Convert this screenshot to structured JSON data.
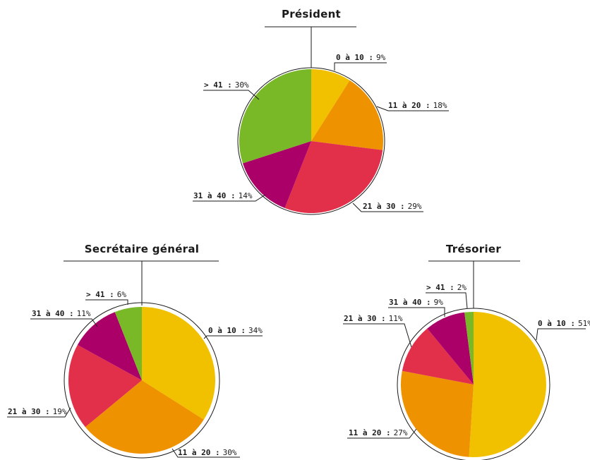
{
  "colors": {
    "0 à 10": "#f1c100",
    "11 à 20": "#ef9200",
    "21 à 30": "#e2304a",
    "31 à 40": "#ab0068",
    "> 41": "#79b928"
  },
  "chart_data": [
    {
      "type": "pie",
      "title": "Président",
      "categories": [
        "0 à 10",
        "11 à 20",
        "21 à 30",
        "31 à 40",
        "> 41"
      ],
      "values": [
        9,
        18,
        29,
        14,
        30
      ],
      "labels": [
        {
          "name": "0 à 10 :",
          "value": "9%"
        },
        {
          "name": "11 à 20 :",
          "value": "18%"
        },
        {
          "name": "21 à 30 :",
          "value": "29%"
        },
        {
          "name": "31 à 40 :",
          "value": "14%"
        },
        {
          "name": "> 41 :",
          "value": "30%"
        }
      ]
    },
    {
      "type": "pie",
      "title": "Secrétaire général",
      "categories": [
        "0 à 10",
        "11 à 20",
        "21 à 30",
        "31 à 40",
        "> 41"
      ],
      "values": [
        34,
        30,
        19,
        11,
        6
      ],
      "labels": [
        {
          "name": "0 à 10 :",
          "value": "34%"
        },
        {
          "name": "11 à 20 :",
          "value": "30%"
        },
        {
          "name": "21 à 30 :",
          "value": "19%"
        },
        {
          "name": "31 à 40 :",
          "value": "11%"
        },
        {
          "name": "> 41 :",
          "value": "6%"
        }
      ]
    },
    {
      "type": "pie",
      "title": "Trésorier",
      "categories": [
        "0 à 10",
        "11 à 20",
        "21 à 30",
        "31 à 40",
        "> 41"
      ],
      "values": [
        51,
        27,
        11,
        9,
        2
      ],
      "labels": [
        {
          "name": "0 à 10 :",
          "value": "51%"
        },
        {
          "name": "11 à 20 :",
          "value": "27%"
        },
        {
          "name": "21 à 30 :",
          "value": "11%"
        },
        {
          "name": "31 à 40 :",
          "value": "9%"
        },
        {
          "name": "> 41 :",
          "value": "2%"
        }
      ]
    }
  ]
}
